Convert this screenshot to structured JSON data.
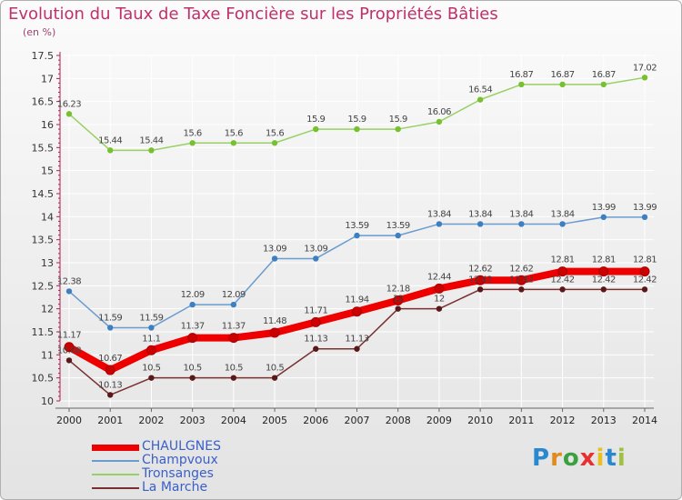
{
  "title": "Evolution du Taux de Taxe Foncière sur les Propriétés Bâties",
  "unit_label": "(en %)",
  "logo": {
    "text": "Proxiti",
    "letter_colors": [
      "#2a88d0",
      "#e08a20",
      "#3aa040",
      "#e83030",
      "#e8c020",
      "#2a88d0",
      "#a0c040"
    ]
  },
  "colors": {
    "title": "#c0306a",
    "axis": "#b02050",
    "grid": "#ffffff",
    "legend_text": "#3a5fc8"
  },
  "chart_data": {
    "type": "line",
    "title": "Evolution du Taux de Taxe Foncière sur les Propriétés Bâties",
    "ylabel": "(en %)",
    "xlabel": "",
    "x": [
      "2000",
      "2001",
      "2002",
      "2003",
      "2004",
      "2005",
      "2006",
      "2007",
      "2008",
      "2009",
      "2010",
      "2011",
      "2012",
      "2013",
      "2014"
    ],
    "ylim": [
      10,
      17.5
    ],
    "yticks": [
      "10",
      "10.5",
      "11",
      "11.5",
      "12",
      "12.5",
      "13",
      "13.5",
      "14",
      "14.5",
      "15",
      "15.5",
      "16",
      "16.5",
      "17",
      "17.5"
    ],
    "grid": true,
    "legend_position": "bottom-left",
    "series": [
      {
        "name": "CHAULGNES",
        "color": "#ee0000",
        "marker": "#cc0000",
        "width": 8,
        "values": [
          11.17,
          10.67,
          11.1,
          11.37,
          11.37,
          11.48,
          11.71,
          11.94,
          12.18,
          12.44,
          12.62,
          12.62,
          12.81,
          12.81,
          12.81
        ],
        "labels": [
          "11.17",
          "10.67",
          "11.1",
          "11.37",
          "11.37",
          "11.48",
          "11.71",
          "11.94",
          "12.18",
          "12.44",
          "12.62",
          "12.62",
          "12.81",
          "12.81",
          "12.81"
        ]
      },
      {
        "name": "Champvoux",
        "color": "#6a9ccf",
        "marker": "#3d7fc0",
        "width": 1.5,
        "values": [
          12.38,
          11.59,
          11.59,
          12.09,
          12.09,
          13.09,
          13.09,
          13.59,
          13.59,
          13.84,
          13.84,
          13.84,
          13.84,
          13.99,
          13.99
        ],
        "labels": [
          "12.38",
          "11.59",
          "11.59",
          "12.09",
          "12.09",
          "13.09",
          "13.09",
          "13.59",
          "13.59",
          "13.84",
          "13.84",
          "13.84",
          "13.84",
          "13.99",
          "13.99"
        ]
      },
      {
        "name": "Tronsanges",
        "color": "#99d066",
        "marker": "#77c030",
        "width": 1.5,
        "values": [
          16.23,
          15.44,
          15.44,
          15.6,
          15.6,
          15.6,
          15.9,
          15.9,
          15.9,
          16.06,
          16.54,
          16.87,
          16.87,
          16.87,
          17.02
        ],
        "labels": [
          "16.23",
          "15.44",
          "15.44",
          "15.6",
          "15.6",
          "15.6",
          "15.9",
          "15.9",
          "15.9",
          "16.06",
          "16.54",
          "16.87",
          "16.87",
          "16.87",
          "17.02"
        ]
      },
      {
        "name": "La Marche",
        "color": "#7a3030",
        "marker": "#5a1818",
        "width": 1.5,
        "values": [
          10.88,
          10.13,
          10.5,
          10.5,
          10.5,
          10.5,
          11.13,
          11.13,
          12,
          12,
          12.42,
          12.42,
          12.42,
          12.42,
          12.42
        ],
        "labels": [
          "10.88",
          "10.13",
          "10.5",
          "10.5",
          "10.5",
          "10.5",
          "11.13",
          "11.13",
          "12",
          "12",
          "12.42",
          "12.42",
          "12.42",
          "12.42",
          "12.42"
        ]
      }
    ]
  }
}
